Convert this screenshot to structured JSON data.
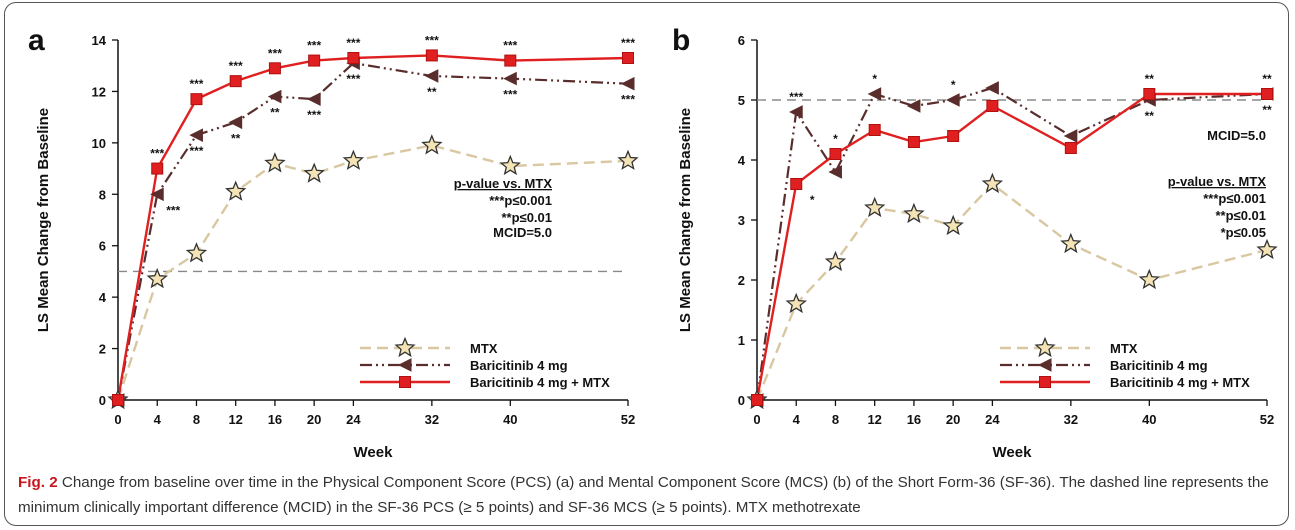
{
  "caption": {
    "label": "Fig. 2",
    "text": " Change from baseline over time in the Physical Component Score (PCS) (a) and Mental Component Score (MCS) (b) of the Short Form-36 (SF-36). The dashed line represents the minimum clinically important difference (MCID) in the SF-36 PCS (≥ 5 points) and SF-36 MCS (≥ 5 points). MTX methotrexate"
  },
  "colors": {
    "mtx": "#d9c7a1",
    "bari": "#5a2d2d",
    "combo": "#e02020",
    "mcid": "#888888",
    "caption_label": "#c8161d"
  },
  "chart_data": [
    {
      "type": "line",
      "panel_label": "a",
      "xlabel": "Week",
      "ylabel": "LS Mean Change from Baseline",
      "x_categories": [
        "0",
        "4",
        "8",
        "12",
        "16",
        "20",
        "24",
        "32",
        "40",
        "52"
      ],
      "ylim": [
        0,
        14
      ],
      "yticks": [
        0,
        2,
        4,
        6,
        8,
        10,
        12,
        14
      ],
      "mcid": 5.0,
      "mcid_label": "MCID=5.0",
      "pvalue_title": "p-value vs. MTX",
      "pvalue_lines": [
        "***p≤0.001",
        "**p≤0.01"
      ],
      "series": [
        {
          "name": "MTX",
          "style": "mtx",
          "values": [
            0,
            4.7,
            5.7,
            8.1,
            9.2,
            8.8,
            9.3,
            9.9,
            9.1,
            9.3
          ]
        },
        {
          "name": "Baricitinib 4 mg",
          "style": "bari",
          "values": [
            0,
            8.0,
            10.3,
            10.8,
            11.8,
            11.7,
            13.1,
            12.6,
            12.5,
            12.3
          ]
        },
        {
          "name": "Baricitinib 4 mg + MTX",
          "style": "combo",
          "values": [
            0,
            9.0,
            11.7,
            12.4,
            12.9,
            13.2,
            13.3,
            13.4,
            13.2,
            13.3
          ]
        }
      ],
      "sig_above": [
        "",
        "***",
        "***",
        "***",
        "***",
        "***",
        "***",
        "***",
        "***",
        "***"
      ],
      "sig_below": [
        "",
        "***",
        "***",
        "**",
        "**",
        "***",
        "***",
        "**",
        "***",
        "***"
      ]
    },
    {
      "type": "line",
      "panel_label": "b",
      "xlabel": "Week",
      "ylabel": "LS Mean Change from Baseline",
      "x_categories": [
        "0",
        "4",
        "8",
        "12",
        "16",
        "20",
        "24",
        "32",
        "40",
        "52"
      ],
      "ylim": [
        0,
        6
      ],
      "yticks": [
        0,
        1,
        2,
        3,
        4,
        5,
        6
      ],
      "mcid": 5.0,
      "mcid_label": "MCID=5.0",
      "pvalue_title": "p-value vs. MTX",
      "pvalue_lines": [
        "***p≤0.001",
        "**p≤0.01",
        "*p≤0.05"
      ],
      "series": [
        {
          "name": "MTX",
          "style": "mtx",
          "values": [
            0,
            1.6,
            2.3,
            3.2,
            3.1,
            2.9,
            3.6,
            2.6,
            2.0,
            2.5
          ]
        },
        {
          "name": "Baricitinib 4 mg",
          "style": "bari",
          "values": [
            0,
            4.8,
            3.8,
            5.1,
            4.9,
            5.0,
            5.2,
            4.4,
            5.0,
            5.1
          ]
        },
        {
          "name": "Baricitinib 4 mg + MTX",
          "style": "combo",
          "values": [
            0,
            3.6,
            4.1,
            4.5,
            4.3,
            4.4,
            4.9,
            4.2,
            5.1,
            5.1
          ]
        }
      ],
      "sig_above": [
        "",
        "***",
        "*",
        "*",
        "",
        "*",
        "",
        "",
        "**",
        "**"
      ],
      "sig_below": [
        "",
        "*",
        "",
        "",
        "",
        "",
        "",
        "",
        "**",
        "**"
      ]
    }
  ]
}
